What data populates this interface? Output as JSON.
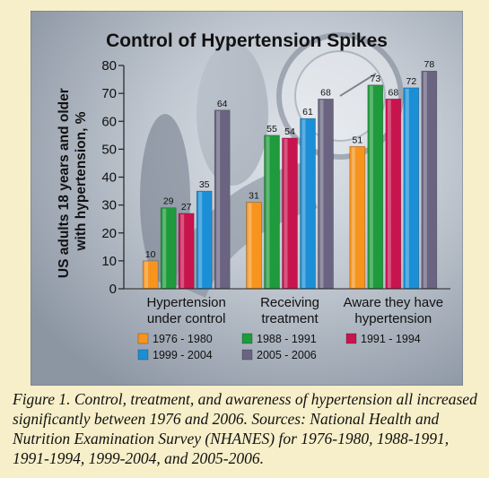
{
  "chart_data": {
    "type": "bar",
    "title": "Control of Hypertension Spikes",
    "ylabel": "US adults 18 years and older with hypertension, %",
    "ylabel_lines": [
      "US adults 18 years and older",
      "with hypertension, %"
    ],
    "ylim": [
      0,
      80
    ],
    "yticks": [
      0,
      10,
      20,
      30,
      40,
      50,
      60,
      70,
      80
    ],
    "categories": [
      "Hypertension under control",
      "Receiving treatment",
      "Aware they have hypertension"
    ],
    "category_lines": [
      [
        "Hypertension",
        "under control"
      ],
      [
        "Receiving",
        "treatment"
      ],
      [
        "Aware they have",
        "hypertension"
      ]
    ],
    "series": [
      {
        "name": "1976 - 1980",
        "values": [
          10,
          31,
          51
        ],
        "color": "#f7941d"
      },
      {
        "name": "1988 - 1991",
        "values": [
          29,
          55,
          73
        ],
        "color": "#1f9a3c"
      },
      {
        "name": "1991 - 1994",
        "values": [
          27,
          54,
          68
        ],
        "color": "#c8144e"
      },
      {
        "name": "1999 - 2004",
        "values": [
          35,
          61,
          72
        ],
        "color": "#1b8fd6"
      },
      {
        "name": "2005 - 2006",
        "values": [
          64,
          68,
          78
        ],
        "color": "#6a6480"
      }
    ],
    "legend_placement": "bottom",
    "grid": false
  },
  "caption": "Figure 1. Control, treatment, and awareness of hypertension all increased significantly between 1976 and 2006. Sources: National Health and Nutrition Examination Survey (NHANES) for 1976-1980, 1988-1991, 1991-1994, 1999-2004, and 2005-2006."
}
